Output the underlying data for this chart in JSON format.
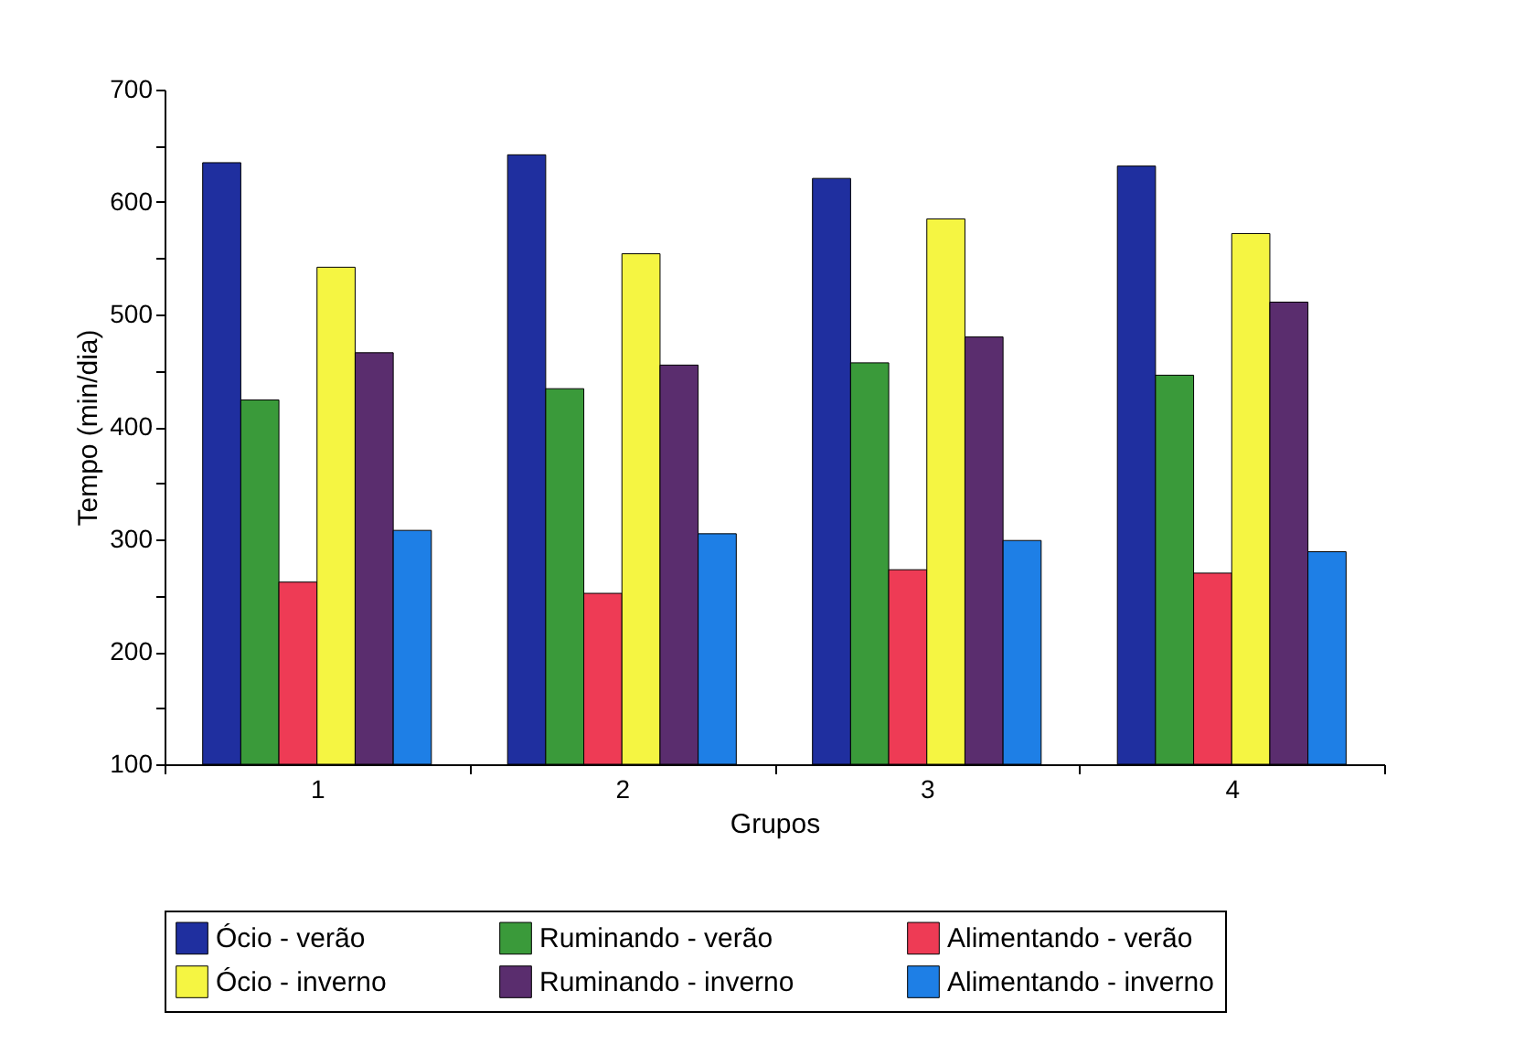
{
  "chart_data": {
    "type": "bar",
    "xlabel": "Grupos",
    "ylabel": "Tempo (min/dia)",
    "categories": [
      "1",
      "2",
      "3",
      "4"
    ],
    "ylim": [
      100,
      700
    ],
    "yticks": [
      100,
      {
        "value": 150,
        "label": null
      },
      200,
      {
        "value": 250,
        "label": null
      },
      300,
      {
        "value": 350,
        "label": null
      },
      400,
      {
        "value": 450,
        "label": null
      },
      500,
      {
        "value": 550,
        "label": null
      },
      600,
      {
        "value": 650,
        "label": null
      },
      700
    ],
    "grid": false,
    "legend": "bottom",
    "series": [
      {
        "name": "Ócio - verão",
        "color": "#1f2f9f",
        "values": [
          635,
          642,
          621,
          632
        ]
      },
      {
        "name": "Ruminando - verão",
        "color": "#3a9a3a",
        "values": [
          424,
          434,
          457,
          446
        ]
      },
      {
        "name": "Alimentando - verão",
        "color": "#ee3b55",
        "values": [
          262,
          252,
          273,
          270
        ]
      },
      {
        "name": "Ócio - inverno",
        "color": "#f5f542",
        "values": [
          542,
          554,
          585,
          572
        ]
      },
      {
        "name": "Ruminando - inverno",
        "color": "#5a2d6e",
        "values": [
          466,
          455,
          480,
          511
        ]
      },
      {
        "name": "Alimentando - inverno",
        "color": "#1e7fe6",
        "values": [
          308,
          305,
          299,
          289
        ]
      }
    ]
  }
}
